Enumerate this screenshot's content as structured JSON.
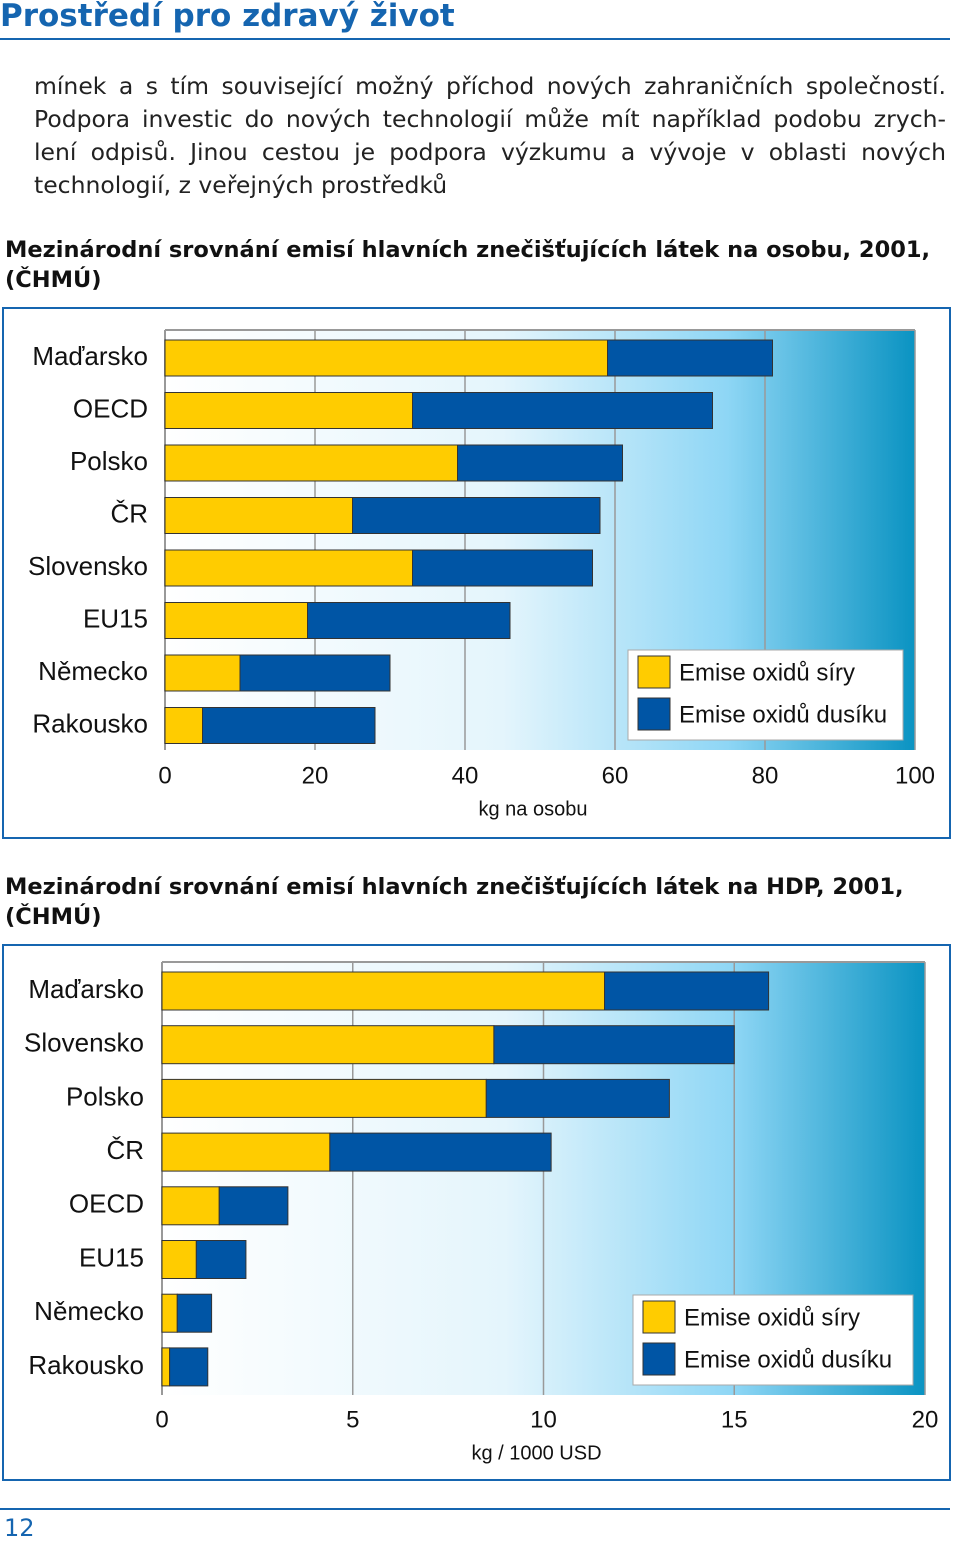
{
  "header": {
    "title": "Prostředí pro zdravý život"
  },
  "paragraph": {
    "lines": [
      "mínek a s tím související možný příchod nových zahraničních společností.",
      "Podpora investic do nových technologií může mít například podobu zrych-",
      "lení odpisů. Jinou cestou je podpora výzkumu a vývoje v oblasti nových",
      "technologií, z veřejných prostředků"
    ]
  },
  "chart_data": [
    {
      "type": "bar",
      "stacked": true,
      "orientation": "horizontal",
      "title": "Mezinárodní srovnání emisí hlavních znečišťujících látek na osobu, 2001, (ČHMÚ)",
      "categories": [
        "Maďarsko",
        "OECD",
        "Polsko",
        "ČR",
        "Slovensko",
        "EU15",
        "Německo",
        "Rakousko"
      ],
      "series": [
        {
          "name": "Emise oxidů síry",
          "color": "#ffcc00",
          "values": [
            59,
            33,
            39,
            25,
            33,
            19,
            10,
            5
          ]
        },
        {
          "name": "Emise oxidů dusíku",
          "color": "#0055a5",
          "values": [
            22,
            40,
            22,
            33,
            24,
            27,
            20,
            23
          ]
        }
      ],
      "xlabel": "kg na osobu",
      "xlim": [
        0,
        100
      ],
      "xticks": [
        0,
        20,
        40,
        60,
        80,
        100
      ],
      "grid": true,
      "legend": "lower right"
    },
    {
      "type": "bar",
      "stacked": true,
      "orientation": "horizontal",
      "title": "Mezinárodní srovnání emisí hlavních znečišťujících látek na HDP, 2001, (ČHMÚ)",
      "categories": [
        "Maďarsko",
        "Slovensko",
        "Polsko",
        "ČR",
        "OECD",
        "EU15",
        "Německo",
        "Rakousko"
      ],
      "series": [
        {
          "name": "Emise oxidů síry",
          "color": "#ffcc00",
          "values": [
            11.6,
            8.7,
            8.5,
            4.4,
            1.5,
            0.9,
            0.4,
            0.2
          ]
        },
        {
          "name": "Emise oxidů dusíku",
          "color": "#0055a5",
          "values": [
            4.3,
            6.3,
            4.8,
            5.8,
            1.8,
            1.3,
            0.9,
            1.0
          ]
        }
      ],
      "xlabel": "kg / 1000 USD",
      "xlim": [
        0,
        20
      ],
      "xticks": [
        0,
        5,
        10,
        15,
        20
      ],
      "grid": true,
      "legend": "lower right"
    }
  ],
  "footer": {
    "page": "12"
  }
}
